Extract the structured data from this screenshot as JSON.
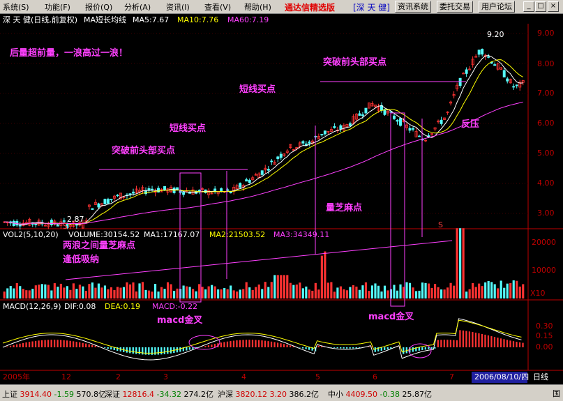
{
  "menu": {
    "items": [
      "系统(S)",
      "功能(F)",
      "报价(Q)",
      "分析(A)",
      "资讯(I)",
      "查看(V)",
      "帮助(H)"
    ]
  },
  "app": {
    "title": "通达信精选版",
    "stock_tag": "[深 天 健]",
    "buttons": [
      "资讯系统",
      "委托交易",
      "用户论坛"
    ]
  },
  "header": {
    "stock": "深 天 健(日线,前复权)",
    "indicator": "MA短长均线",
    "ma5": "MA5:7.67",
    "ma10": "MA10:7.76",
    "ma60": "MA60:7.19"
  },
  "volume_header": {
    "name": "VOL2(5,10,20)",
    "volume": "VOLUME:30154.52",
    "ma1": "MA1:17167.07",
    "ma2": "MA2:21503.52",
    "ma3": "MA3:34349.11"
  },
  "macd_header": {
    "name": "MACD(12,26,9)",
    "dif": "DIF:0.08",
    "dea": "DEA:0.19",
    "macd": "MACD:-0.22"
  },
  "axes": {
    "price_ticks": [
      "9.00",
      "8.00",
      "7.00",
      "6.00",
      "5.00",
      "4.00",
      "3.00"
    ],
    "volume_ticks": [
      "20000",
      "10000"
    ],
    "volume_unit": "X10",
    "macd_ticks": [
      "0.30",
      "0.15",
      "0.00"
    ],
    "months": [
      "2005年",
      "12",
      "2",
      "3",
      "4",
      "5",
      "6",
      "7"
    ],
    "date": "2006/08/10/四",
    "period": "日线"
  },
  "annotations": {
    "slogan": "后量超前量，一浪高过一浪！",
    "breakout1": "突破前头部买点",
    "short1": "短线买点",
    "short2": "短线买点",
    "breakout2": "突破前头部买点",
    "resist": "反压",
    "high": "9.20",
    "low": "2.87",
    "vol_point": "量芝麻点",
    "between": "两浪之间量芝麻点",
    "buy_low": "逢低吸纳",
    "macd1": "macd金叉",
    "macd2": "macd金叉",
    "s1": "S",
    "s2": "S"
  },
  "quotes": [
    {
      "name": "上证",
      "price": "3914.40",
      "chg": "-1.59",
      "amt": "570.8亿"
    },
    {
      "name": "深证",
      "price": "12816.4",
      "chg": "-34.32",
      "amt": "274.2亿"
    },
    {
      "name": "沪深",
      "price": "3820.12",
      "chg": "3.20",
      "amt": "386.2亿"
    },
    {
      "name": "中小",
      "price": "4409.50",
      "chg": "-0.38",
      "amt": "25.87亿"
    }
  ],
  "bottom_right": "国",
  "colors": {
    "up": "#ff3232",
    "down": "#54fcfc",
    "ma5": "#ffffff",
    "ma10": "#ffff00",
    "ma60": "#ff40ff",
    "ann": "#ff40ff",
    "axis": "#c00000"
  }
}
